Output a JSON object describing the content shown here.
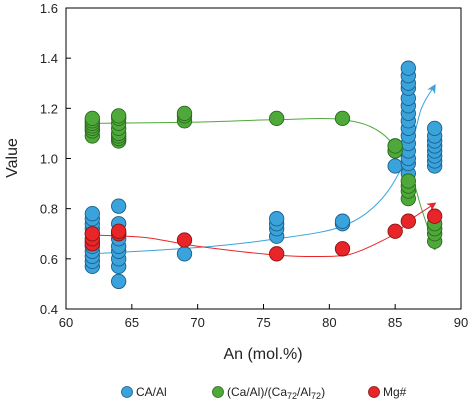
{
  "chart_data": {
    "type": "scatter",
    "xlabel": "An (mol.%)",
    "ylabel": "Value",
    "xlim": [
      60,
      90
    ],
    "ylim": [
      0.4,
      1.6
    ],
    "xticks": [
      "60",
      "65",
      "70",
      "75",
      "80",
      "85",
      "90"
    ],
    "yticks": [
      "0.4",
      "0.6",
      "0.8",
      "1.0",
      "1.2",
      "1.4",
      "1.6"
    ],
    "grid": false,
    "legend_position": "bottom",
    "series": [
      {
        "name": "CA/Al",
        "color": "#3aa3dc",
        "points": [
          [
            62,
            0.57
          ],
          [
            62,
            0.59
          ],
          [
            62,
            0.61
          ],
          [
            62,
            0.63
          ],
          [
            62,
            0.65
          ],
          [
            62,
            0.67
          ],
          [
            62,
            0.7
          ],
          [
            62,
            0.72
          ],
          [
            62,
            0.74
          ],
          [
            62,
            0.76
          ],
          [
            62,
            0.78
          ],
          [
            64,
            0.51
          ],
          [
            64,
            0.57
          ],
          [
            64,
            0.6
          ],
          [
            64,
            0.63
          ],
          [
            64,
            0.65
          ],
          [
            64,
            0.68
          ],
          [
            64,
            0.7
          ],
          [
            64,
            0.74
          ],
          [
            64,
            0.81
          ],
          [
            69,
            0.62
          ],
          [
            76,
            0.69
          ],
          [
            76,
            0.72
          ],
          [
            76,
            0.74
          ],
          [
            76,
            0.76
          ],
          [
            81,
            0.74
          ],
          [
            81,
            0.75
          ],
          [
            85,
            0.97
          ],
          [
            85,
            1.03
          ],
          [
            85,
            1.05
          ],
          [
            86,
            0.94
          ],
          [
            86,
            0.98
          ],
          [
            86,
            1.0
          ],
          [
            86,
            1.03
          ],
          [
            86,
            1.06
          ],
          [
            86,
            1.09
          ],
          [
            86,
            1.12
          ],
          [
            86,
            1.15
          ],
          [
            86,
            1.18
          ],
          [
            86,
            1.21
          ],
          [
            86,
            1.24
          ],
          [
            86,
            1.28
          ],
          [
            86,
            1.3
          ],
          [
            86,
            1.33
          ],
          [
            86,
            1.36
          ],
          [
            88,
            0.97
          ],
          [
            88,
            0.99
          ],
          [
            88,
            1.01
          ],
          [
            88,
            1.03
          ],
          [
            88,
            1.05
          ],
          [
            88,
            1.07
          ],
          [
            88,
            1.09
          ],
          [
            88,
            1.12
          ]
        ],
        "trend": [
          [
            62,
            0.62
          ],
          [
            70,
            0.645
          ],
          [
            76,
            0.68
          ],
          [
            81,
            0.73
          ],
          [
            84,
            0.84
          ],
          [
            86,
            1.02
          ],
          [
            87,
            1.2
          ],
          [
            88,
            1.29
          ]
        ]
      },
      {
        "name": "(Ca/Al)/(Ca72/Al72)",
        "color": "#4fa83a",
        "points": [
          [
            62,
            1.09
          ],
          [
            62,
            1.11
          ],
          [
            62,
            1.12
          ],
          [
            62,
            1.13
          ],
          [
            62,
            1.14
          ],
          [
            62,
            1.15
          ],
          [
            62,
            1.16
          ],
          [
            64,
            1.07
          ],
          [
            64,
            1.08
          ],
          [
            64,
            1.09
          ],
          [
            64,
            1.1
          ],
          [
            64,
            1.12
          ],
          [
            64,
            1.14
          ],
          [
            64,
            1.16
          ],
          [
            64,
            1.17
          ],
          [
            69,
            1.15
          ],
          [
            69,
            1.17
          ],
          [
            69,
            1.18
          ],
          [
            76,
            1.16
          ],
          [
            81,
            1.16
          ],
          [
            85,
            1.03
          ],
          [
            85,
            1.05
          ],
          [
            86,
            0.84
          ],
          [
            86,
            0.87
          ],
          [
            86,
            0.89
          ],
          [
            86,
            0.91
          ],
          [
            88,
            0.67
          ],
          [
            88,
            0.7
          ],
          [
            88,
            0.72
          ],
          [
            88,
            0.74
          ]
        ],
        "trend": [
          [
            62,
            1.14
          ],
          [
            70,
            1.145
          ],
          [
            76,
            1.155
          ],
          [
            81,
            1.155
          ],
          [
            84,
            1.1
          ],
          [
            86,
            0.96
          ],
          [
            87,
            0.8
          ],
          [
            88,
            0.64
          ]
        ]
      },
      {
        "name": "Mg#",
        "color": "#e8262a",
        "points": [
          [
            62,
            0.66
          ],
          [
            62,
            0.68
          ],
          [
            62,
            0.7
          ],
          [
            64,
            0.7
          ],
          [
            64,
            0.71
          ],
          [
            69,
            0.675
          ],
          [
            76,
            0.62
          ],
          [
            81,
            0.64
          ],
          [
            85,
            0.71
          ],
          [
            86,
            0.75
          ],
          [
            88,
            0.77
          ]
        ],
        "trend": [
          [
            62,
            0.695
          ],
          [
            66,
            0.685
          ],
          [
            70,
            0.65
          ],
          [
            76,
            0.615
          ],
          [
            80,
            0.61
          ],
          [
            82,
            0.625
          ],
          [
            85,
            0.7
          ],
          [
            86,
            0.75
          ],
          [
            88,
            0.82
          ]
        ]
      }
    ]
  }
}
